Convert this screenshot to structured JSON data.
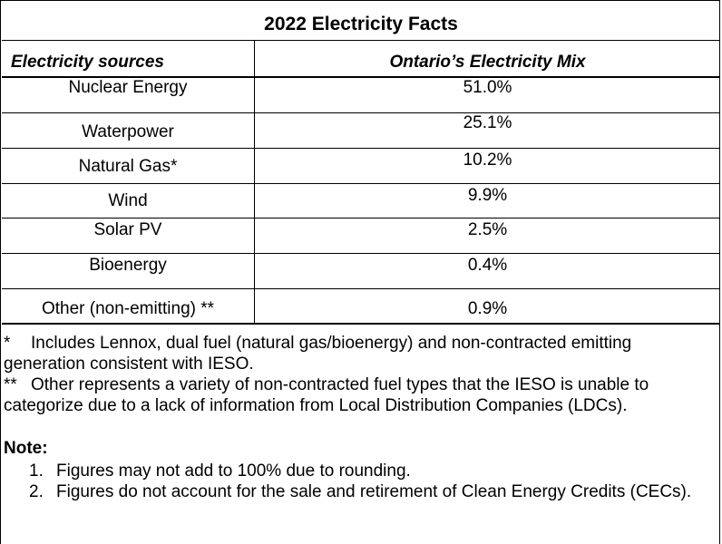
{
  "title": "2022 Electricity Facts",
  "headers": {
    "source": "Electricity sources",
    "mix": "Ontario’s Electricity Mix"
  },
  "rows": [
    {
      "source": "Nuclear Energy",
      "value": "51.0%"
    },
    {
      "source": "Waterpower",
      "value": "25.1%"
    },
    {
      "source": "Natural Gas*",
      "value": "10.2%"
    },
    {
      "source": "Wind",
      "value": "9.9%"
    },
    {
      "source": "Solar PV",
      "value": "2.5%"
    },
    {
      "source": "Bioenergy",
      "value": "0.4%"
    },
    {
      "source": "Other (non-emitting) **",
      "value": "0.9%"
    }
  ],
  "footnotes": [
    {
      "mark": "*",
      "text": "Includes Lennox, dual fuel (natural gas/bioenergy) and non-contracted emitting generation consistent with IESO."
    },
    {
      "mark": "**",
      "text": "Other represents a variety of non-contracted fuel types that the IESO is unable to categorize due to a lack of information from Local Distribution Companies (LDCs)."
    }
  ],
  "note": {
    "heading": "Note:",
    "items": [
      {
        "num": "1.",
        "text": "Figures may not add to 100% due to rounding."
      },
      {
        "num": "2.",
        "text": "Figures do not account for the sale and retirement of Clean Energy Credits (CECs)."
      }
    ]
  }
}
